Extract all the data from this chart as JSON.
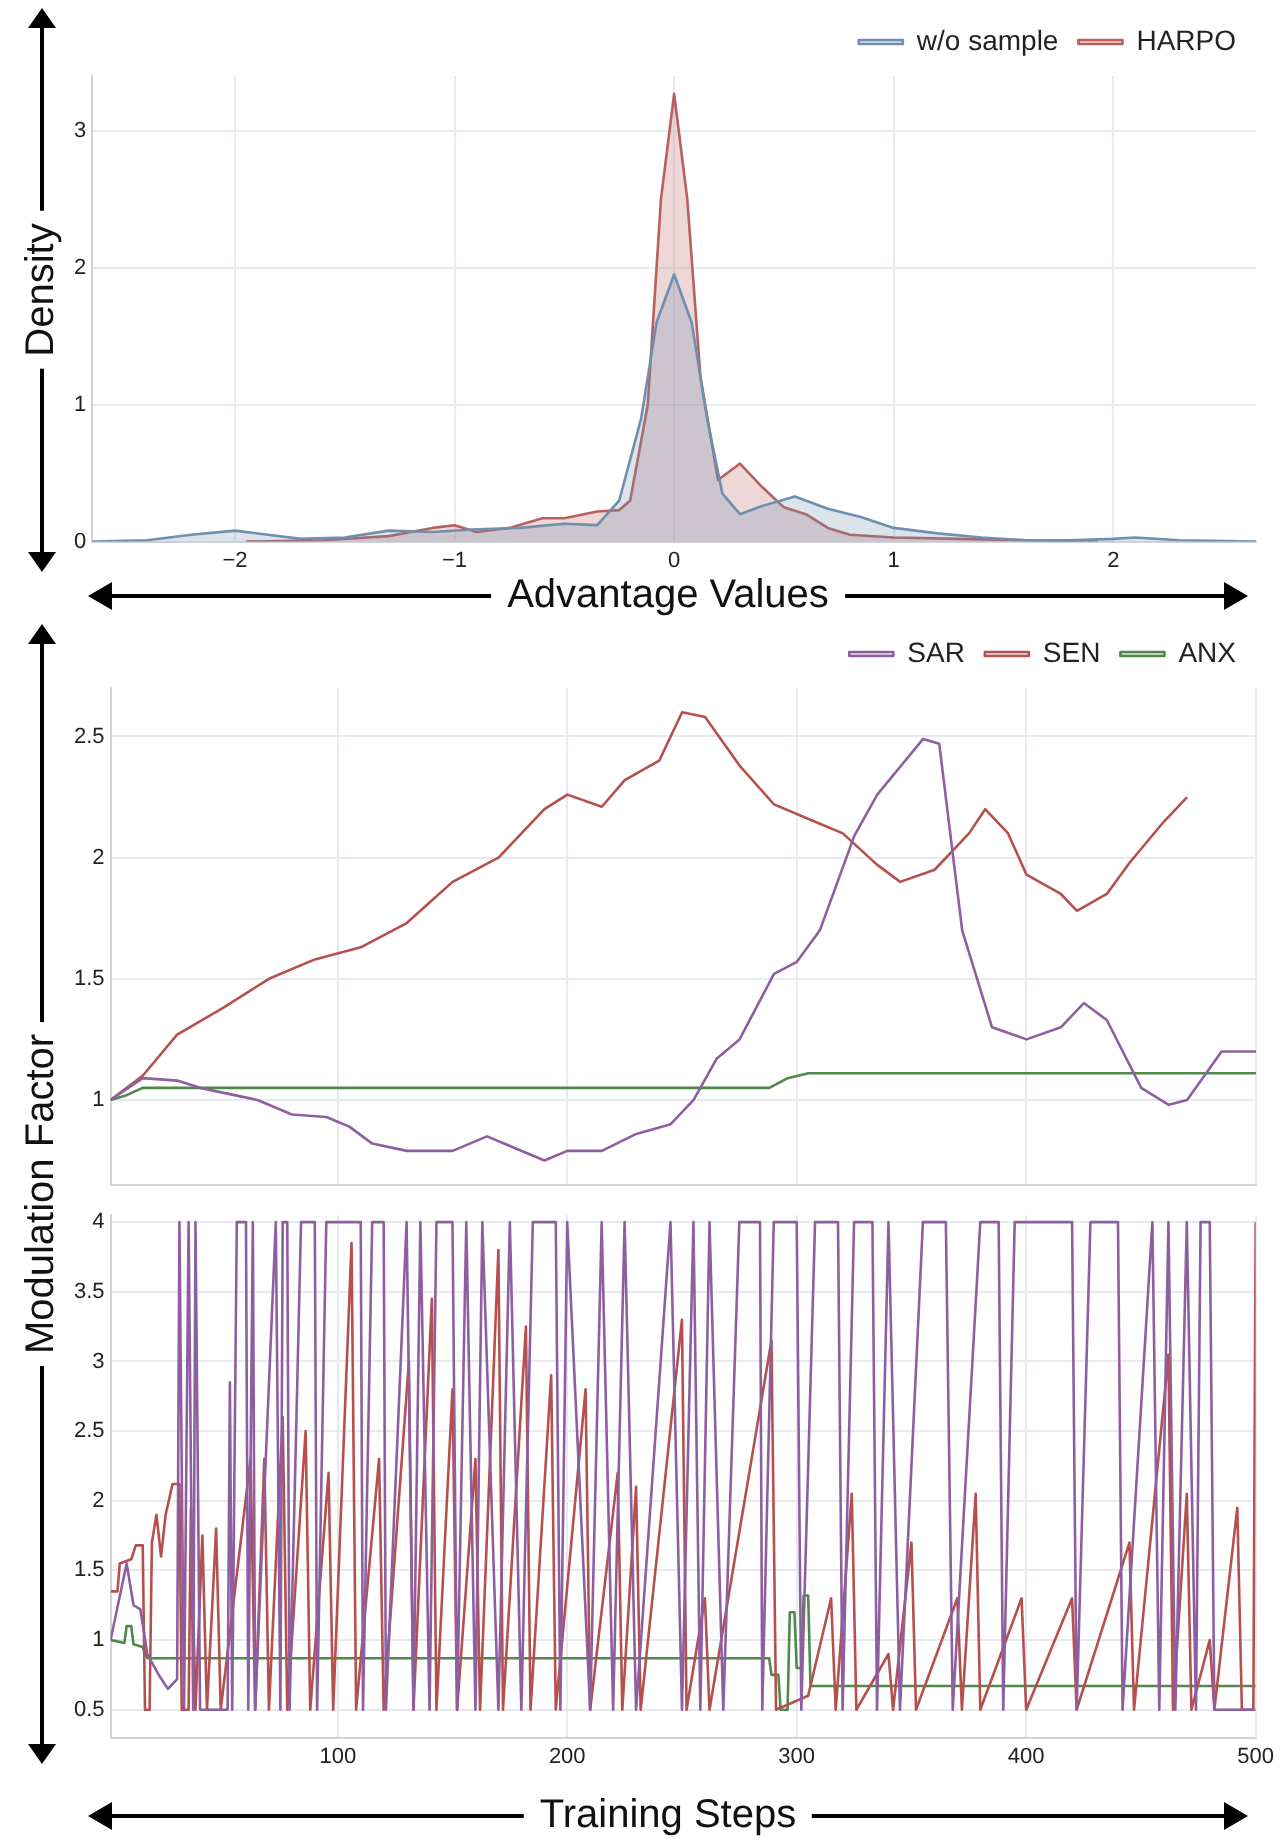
{
  "chart_data": [
    {
      "type": "area",
      "xlabel": "Advantage Values",
      "ylabel": "Density",
      "xlim": [
        -2.65,
        2.65
      ],
      "xticks": [
        {
          "value": -2,
          "label": "−2"
        },
        {
          "value": -1,
          "label": "−1"
        },
        0,
        1,
        2
      ],
      "ylim": [
        0,
        3.4
      ],
      "yticks": [
        0,
        1,
        2,
        3
      ],
      "grid": true,
      "legend": "top right",
      "marker": "none",
      "series": [
        {
          "name": "w/o sample",
          "color": "#6f8faf",
          "x": [
            -2.65,
            -2.4,
            -2.2,
            -2,
            -1.85,
            -1.7,
            -1.5,
            -1.3,
            -1.1,
            -0.9,
            -0.7,
            -0.5,
            -0.35,
            -0.25,
            -0.15,
            -0.08,
            0,
            0.08,
            0.15,
            0.22,
            0.3,
            0.4,
            0.55,
            0.7,
            0.85,
            1,
            1.2,
            1.4,
            1.6,
            1.8,
            2,
            2.1,
            2.3,
            2.65
          ],
          "values": [
            0,
            0.01,
            0.05,
            0.08,
            0.05,
            0.02,
            0.03,
            0.08,
            0.07,
            0.09,
            0.1,
            0.13,
            0.12,
            0.3,
            0.9,
            1.6,
            1.95,
            1.6,
            0.9,
            0.35,
            0.2,
            0.26,
            0.33,
            0.24,
            0.18,
            0.1,
            0.06,
            0.03,
            0.01,
            0.01,
            0.02,
            0.03,
            0.01,
            0
          ]
        },
        {
          "name": "HARPO",
          "color": "#b8605f",
          "x": [
            -1.95,
            -1.6,
            -1.3,
            -1.1,
            -1,
            -0.9,
            -0.75,
            -0.6,
            -0.5,
            -0.35,
            -0.25,
            -0.2,
            -0.12,
            -0.06,
            0,
            0.06,
            0.12,
            0.2,
            0.3,
            0.4,
            0.5,
            0.6,
            0.7,
            0.8,
            1,
            1.3,
            1.6,
            1.93
          ],
          "values": [
            0,
            0.01,
            0.04,
            0.1,
            0.12,
            0.07,
            0.1,
            0.17,
            0.17,
            0.22,
            0.23,
            0.3,
            1,
            2.5,
            3.27,
            2.5,
            1.2,
            0.45,
            0.57,
            0.4,
            0.25,
            0.2,
            0.1,
            0.05,
            0.03,
            0.02,
            0.01,
            0
          ]
        }
      ]
    },
    {
      "type": "line",
      "ylabel": "Modulation Factor",
      "xlim": [
        1,
        500
      ],
      "xticks": [
        100,
        200,
        300,
        400,
        500
      ],
      "ylim": [
        0.65,
        2.7
      ],
      "yticks": [
        1,
        1.5,
        2,
        2.5
      ],
      "grid": true,
      "legend": "top right",
      "marker": "none",
      "tick_labels": "y",
      "series": [
        {
          "name": "SAR",
          "color": "#8e5fa0",
          "x": [
            1,
            15,
            30,
            40,
            55,
            65,
            80,
            95,
            105,
            115,
            130,
            150,
            165,
            175,
            190,
            200,
            215,
            230,
            245,
            255,
            265,
            275,
            290,
            300,
            310,
            325,
            335,
            355,
            362,
            372,
            385,
            400,
            415,
            425,
            435,
            450,
            462,
            470,
            485,
            500
          ],
          "values": [
            1,
            1.09,
            1.08,
            1.05,
            1.02,
            1,
            0.94,
            0.93,
            0.89,
            0.82,
            0.79,
            0.79,
            0.85,
            0.81,
            0.75,
            0.79,
            0.79,
            0.86,
            0.9,
            1,
            1.17,
            1.25,
            1.52,
            1.57,
            1.7,
            2.09,
            2.26,
            2.49,
            2.47,
            1.7,
            1.3,
            1.25,
            1.3,
            1.4,
            1.33,
            1.05,
            0.98,
            1,
            1.2,
            1.2
          ]
        },
        {
          "name": "SEN",
          "color": "#b5504e",
          "x": [
            1,
            15,
            30,
            50,
            70,
            90,
            110,
            130,
            150,
            170,
            190,
            200,
            215,
            225,
            240,
            250,
            260,
            275,
            290,
            310,
            320,
            335,
            345,
            360,
            375,
            382,
            392,
            400,
            415,
            422,
            435,
            445,
            460,
            470
          ],
          "values": [
            1,
            1.1,
            1.27,
            1.38,
            1.5,
            1.58,
            1.63,
            1.73,
            1.9,
            2,
            2.2,
            2.26,
            2.21,
            2.32,
            2.4,
            2.6,
            2.58,
            2.38,
            2.22,
            2.14,
            2.1,
            1.97,
            1.9,
            1.95,
            2.1,
            2.2,
            2.1,
            1.93,
            1.85,
            1.78,
            1.85,
            1.98,
            2.15,
            2.25
          ]
        },
        {
          "name": "ANX",
          "color": "#4f8a4a",
          "x": [
            1,
            8,
            15,
            288,
            296,
            305,
            500
          ],
          "values": [
            1,
            1.02,
            1.05,
            1.05,
            1.09,
            1.11,
            1.11
          ]
        }
      ]
    },
    {
      "type": "line",
      "xlabel": "Training Steps",
      "xlim": [
        1,
        500
      ],
      "xticks": [
        100,
        200,
        300,
        400,
        500
      ],
      "ylim": [
        0.3,
        4.05
      ],
      "yticks": [
        0.5,
        1,
        1.5,
        2,
        2.5,
        3,
        3.5,
        4
      ],
      "grid": true,
      "marker": "none",
      "series": [
        {
          "color": "#8e5fa0",
          "x": [
            1,
            8,
            11,
            14,
            17,
            22,
            26,
            30,
            31,
            33,
            35,
            37,
            38,
            40,
            52,
            53,
            54,
            56,
            60,
            61,
            63,
            64,
            73,
            75,
            76,
            78,
            79,
            84,
            90,
            91,
            95,
            110,
            111,
            115,
            120,
            121,
            130,
            133,
            136,
            140,
            143,
            150,
            152,
            156,
            160,
            163,
            170,
            175,
            180,
            185,
            195,
            197,
            200,
            210,
            215,
            220,
            225,
            230,
            245,
            250,
            255,
            258,
            262,
            268,
            275,
            284,
            285,
            290,
            300,
            302,
            308,
            318,
            320,
            325,
            333,
            335,
            340,
            345,
            355,
            365,
            368,
            380,
            388,
            390,
            395,
            420,
            422,
            428,
            440,
            442,
            455,
            458,
            462,
            465,
            470,
            474,
            476,
            480,
            482,
            500
          ],
          "values": [
            1,
            1.55,
            1.25,
            1.22,
            0.9,
            0.75,
            0.65,
            0.72,
            4,
            0.5,
            4,
            0.5,
            4,
            0.5,
            0.5,
            2.85,
            0.5,
            4,
            4,
            0.5,
            4,
            0.5,
            4,
            0.5,
            4,
            4,
            0.5,
            4,
            4,
            0.5,
            4,
            4,
            0.5,
            4,
            4,
            0.5,
            4,
            0.5,
            4,
            0.5,
            4,
            4,
            0.5,
            4,
            0.5,
            4,
            0.5,
            4,
            0.5,
            4,
            4,
            0.5,
            4,
            0.5,
            4,
            0.5,
            4,
            0.5,
            4,
            0.5,
            4,
            0.5,
            4,
            0.5,
            4,
            4,
            0.5,
            4,
            4,
            0.5,
            4,
            4,
            0.5,
            4,
            4,
            0.5,
            4,
            0.5,
            4,
            4,
            0.5,
            4,
            4,
            0.5,
            4,
            4,
            0.5,
            4,
            4,
            0.5,
            4,
            0.5,
            4,
            0.5,
            4,
            0.5,
            4,
            4,
            0.5,
            0.5
          ]
        },
        {
          "color": "#b5504e",
          "x": [
            1,
            4,
            5,
            10,
            12,
            15,
            16,
            18,
            19,
            21,
            23,
            25,
            28,
            31,
            32,
            35,
            36,
            38,
            41,
            43,
            47,
            49,
            62,
            64,
            68,
            70,
            76,
            78,
            86,
            88,
            96,
            98,
            106,
            108,
            118,
            120,
            131,
            133,
            141,
            143,
            150,
            152,
            160,
            162,
            170,
            172,
            182,
            184,
            193,
            195,
            208,
            210,
            222,
            224,
            230,
            232,
            250,
            252,
            260,
            262,
            289,
            291,
            305,
            315,
            317,
            324,
            326,
            340,
            342,
            350,
            352,
            370,
            372,
            378,
            380,
            398,
            400,
            420,
            422,
            445,
            447,
            462,
            464,
            470,
            472,
            480,
            482,
            492,
            494,
            499,
            500
          ],
          "values": [
            1.35,
            1.35,
            1.55,
            1.58,
            1.68,
            1.68,
            0.5,
            0.5,
            1.7,
            1.9,
            1.6,
            1.9,
            2.12,
            2.12,
            0.5,
            0.5,
            1.95,
            0.5,
            1.75,
            0.5,
            1.8,
            0.5,
            2.3,
            0.5,
            2.3,
            0.5,
            2.6,
            0.5,
            2.5,
            0.5,
            2.2,
            0.5,
            3.85,
            0.5,
            2.3,
            0.5,
            3,
            0.5,
            3.45,
            0.5,
            2.8,
            0.5,
            2.3,
            0.5,
            3.8,
            0.5,
            3.25,
            0.5,
            2.9,
            0.5,
            2.8,
            0.5,
            2.2,
            0.5,
            2.1,
            0.5,
            3.3,
            0.5,
            1.3,
            0.5,
            3.15,
            0.5,
            0.6,
            1.3,
            0.5,
            2.05,
            0.5,
            0.9,
            0.5,
            1.7,
            0.5,
            1.3,
            0.5,
            2.05,
            0.5,
            1.3,
            0.5,
            1.3,
            0.5,
            1.7,
            0.5,
            3.05,
            0.5,
            2.05,
            0.5,
            1,
            0.5,
            1.95,
            0.5,
            0.5,
            4
          ]
        },
        {
          "color": "#4f8a4a",
          "x": [
            1,
            7,
            8,
            10,
            11,
            15,
            17,
            288,
            289,
            292,
            293,
            296,
            297,
            299,
            300,
            302,
            303,
            305,
            306,
            500
          ],
          "values": [
            1,
            0.98,
            1.1,
            1.1,
            0.97,
            0.95,
            0.87,
            0.87,
            0.75,
            0.75,
            0.5,
            0.5,
            1.2,
            1.2,
            0.8,
            0.8,
            1.32,
            1.32,
            0.67,
            0.67
          ]
        }
      ]
    }
  ]
}
